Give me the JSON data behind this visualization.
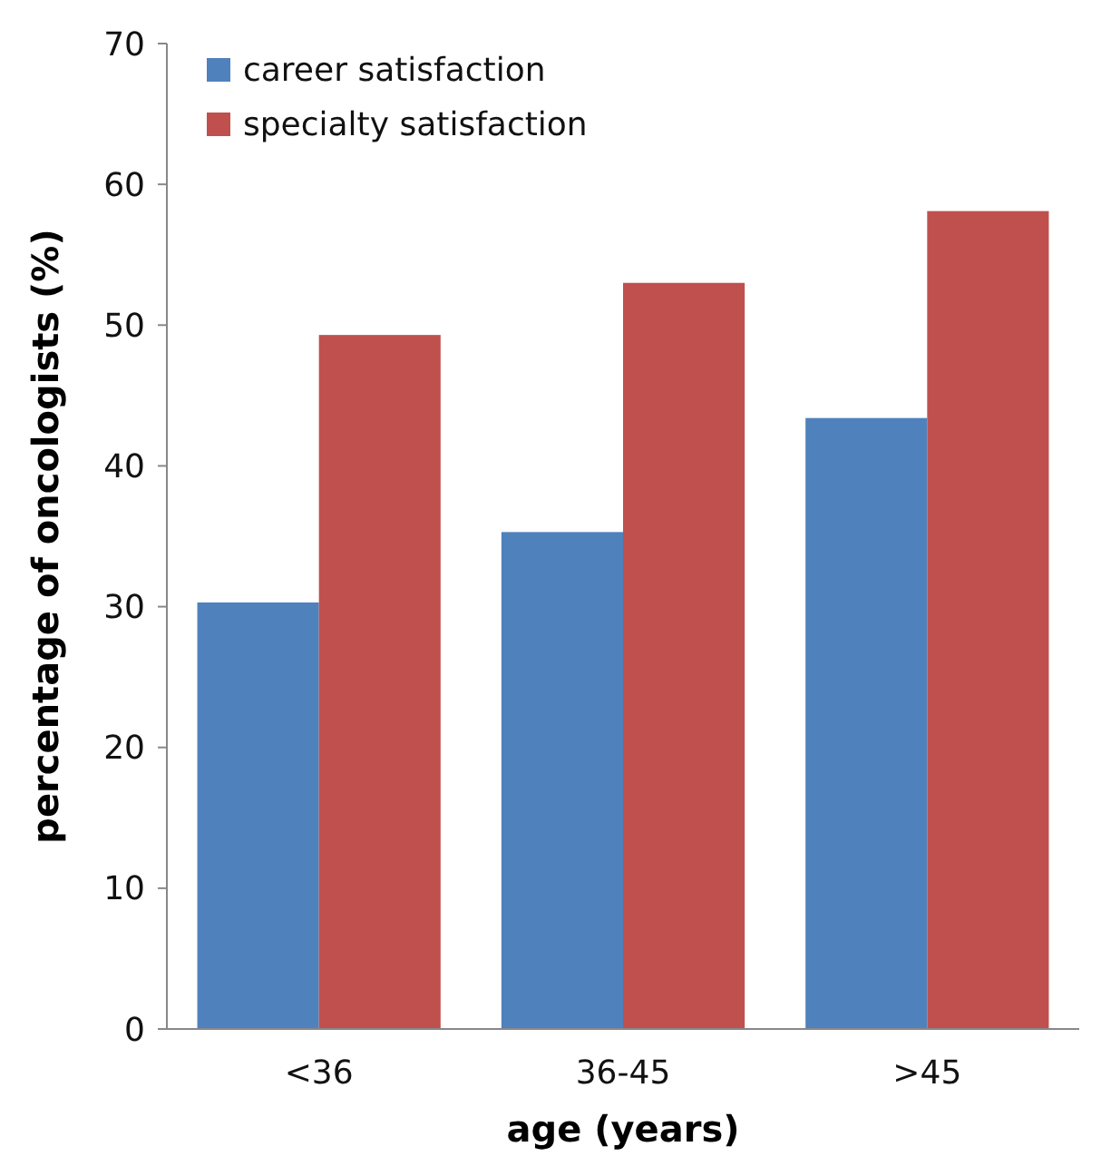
{
  "chart_data": {
    "type": "bar",
    "xlabel": "age (years)",
    "ylabel": "percentage of oncologists (%)",
    "categories": [
      "<36",
      "36-45",
      ">45"
    ],
    "series": [
      {
        "name": "career satisfaction",
        "color": "#4f81bd",
        "values": [
          30.3,
          35.3,
          43.4
        ]
      },
      {
        "name": "specialty satisfaction",
        "color": "#c0504d",
        "values": [
          49.3,
          53.0,
          58.1
        ]
      }
    ],
    "ylim": [
      0,
      70
    ],
    "yticks": [
      0,
      10,
      20,
      30,
      40,
      50,
      60,
      70
    ],
    "grid": false,
    "legend": "top left"
  }
}
